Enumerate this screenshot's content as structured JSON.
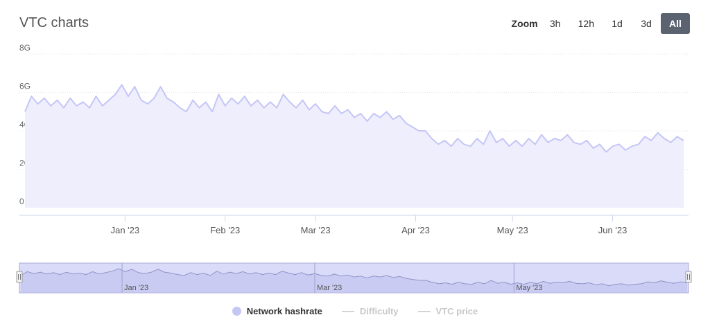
{
  "title": "VTC charts",
  "zoom": {
    "label": "Zoom",
    "buttons": [
      "3h",
      "12h",
      "1d",
      "3d",
      "All"
    ],
    "active": "All"
  },
  "legend": [
    {
      "label": "Network hashrate",
      "active": true,
      "color": "#c4c6f6"
    },
    {
      "label": "Difficulty",
      "active": false,
      "color": "#d4d4d4"
    },
    {
      "label": "VTC price",
      "active": false,
      "color": "#d4d4d4"
    }
  ],
  "colors": {
    "series_line": "#c4c6f6",
    "series_fill": "#eeeefc",
    "navigator_fill": "#cdcff5",
    "navigator_line": "#9092c8"
  },
  "chart_data": {
    "type": "area",
    "x_start": "2022-12-01",
    "x_end": "2023-06-23",
    "ylim": [
      0,
      8
    ],
    "y_unit": "G",
    "y_ticks": [
      {
        "v": 0,
        "label": "0"
      },
      {
        "v": 2,
        "label": "2G"
      },
      {
        "v": 4,
        "label": "4G"
      },
      {
        "v": 6,
        "label": "6G"
      },
      {
        "v": 8,
        "label": "8G"
      }
    ],
    "x_ticks": [
      {
        "date": "2023-01-01",
        "label": "Jan '23"
      },
      {
        "date": "2023-02-01",
        "label": "Feb '23"
      },
      {
        "date": "2023-03-01",
        "label": "Mar '23"
      },
      {
        "date": "2023-04-01",
        "label": "Apr '23"
      },
      {
        "date": "2023-05-01",
        "label": "May '23"
      },
      {
        "date": "2023-06-01",
        "label": "Jun '23"
      }
    ],
    "navigator_ticks": [
      {
        "date": "2023-01-01",
        "label": "Jan '23"
      },
      {
        "date": "2023-03-01",
        "label": "Mar '23"
      },
      {
        "date": "2023-05-01",
        "label": "May '23"
      }
    ],
    "series": [
      {
        "name": "Network hashrate",
        "points": [
          [
            "2022-12-01",
            5.0
          ],
          [
            "2022-12-03",
            5.8
          ],
          [
            "2022-12-05",
            5.4
          ],
          [
            "2022-12-07",
            5.7
          ],
          [
            "2022-12-09",
            5.3
          ],
          [
            "2022-12-11",
            5.6
          ],
          [
            "2022-12-13",
            5.2
          ],
          [
            "2022-12-15",
            5.7
          ],
          [
            "2022-12-17",
            5.3
          ],
          [
            "2022-12-19",
            5.5
          ],
          [
            "2022-12-21",
            5.2
          ],
          [
            "2022-12-23",
            5.8
          ],
          [
            "2022-12-25",
            5.3
          ],
          [
            "2022-12-27",
            5.6
          ],
          [
            "2022-12-29",
            5.9
          ],
          [
            "2022-12-31",
            6.4
          ],
          [
            "2023-01-02",
            5.8
          ],
          [
            "2023-01-04",
            6.3
          ],
          [
            "2023-01-06",
            5.6
          ],
          [
            "2023-01-08",
            5.4
          ],
          [
            "2023-01-10",
            5.7
          ],
          [
            "2023-01-12",
            6.3
          ],
          [
            "2023-01-14",
            5.7
          ],
          [
            "2023-01-16",
            5.5
          ],
          [
            "2023-01-18",
            5.2
          ],
          [
            "2023-01-20",
            5.0
          ],
          [
            "2023-01-22",
            5.6
          ],
          [
            "2023-01-24",
            5.2
          ],
          [
            "2023-01-26",
            5.5
          ],
          [
            "2023-01-28",
            5.0
          ],
          [
            "2023-01-30",
            5.9
          ],
          [
            "2023-02-01",
            5.3
          ],
          [
            "2023-02-03",
            5.7
          ],
          [
            "2023-02-05",
            5.4
          ],
          [
            "2023-02-07",
            5.8
          ],
          [
            "2023-02-09",
            5.3
          ],
          [
            "2023-02-11",
            5.6
          ],
          [
            "2023-02-13",
            5.2
          ],
          [
            "2023-02-15",
            5.5
          ],
          [
            "2023-02-17",
            5.2
          ],
          [
            "2023-02-19",
            5.9
          ],
          [
            "2023-02-21",
            5.5
          ],
          [
            "2023-02-23",
            5.2
          ],
          [
            "2023-02-25",
            5.6
          ],
          [
            "2023-02-27",
            5.1
          ],
          [
            "2023-03-01",
            5.4
          ],
          [
            "2023-03-03",
            5.0
          ],
          [
            "2023-03-05",
            4.9
          ],
          [
            "2023-03-07",
            5.3
          ],
          [
            "2023-03-09",
            4.9
          ],
          [
            "2023-03-11",
            5.1
          ],
          [
            "2023-03-13",
            4.7
          ],
          [
            "2023-03-15",
            4.9
          ],
          [
            "2023-03-17",
            4.5
          ],
          [
            "2023-03-19",
            4.9
          ],
          [
            "2023-03-21",
            4.7
          ],
          [
            "2023-03-23",
            5.0
          ],
          [
            "2023-03-25",
            4.6
          ],
          [
            "2023-03-27",
            4.8
          ],
          [
            "2023-03-29",
            4.4
          ],
          [
            "2023-03-31",
            4.2
          ],
          [
            "2023-04-02",
            4.0
          ],
          [
            "2023-04-04",
            4.0
          ],
          [
            "2023-04-06",
            3.6
          ],
          [
            "2023-04-08",
            3.3
          ],
          [
            "2023-04-10",
            3.5
          ],
          [
            "2023-04-12",
            3.2
          ],
          [
            "2023-04-14",
            3.6
          ],
          [
            "2023-04-16",
            3.3
          ],
          [
            "2023-04-18",
            3.2
          ],
          [
            "2023-04-20",
            3.6
          ],
          [
            "2023-04-22",
            3.3
          ],
          [
            "2023-04-24",
            4.0
          ],
          [
            "2023-04-26",
            3.4
          ],
          [
            "2023-04-28",
            3.6
          ],
          [
            "2023-04-30",
            3.2
          ],
          [
            "2023-05-02",
            3.5
          ],
          [
            "2023-05-04",
            3.2
          ],
          [
            "2023-05-06",
            3.6
          ],
          [
            "2023-05-08",
            3.3
          ],
          [
            "2023-05-10",
            3.8
          ],
          [
            "2023-05-12",
            3.4
          ],
          [
            "2023-05-14",
            3.6
          ],
          [
            "2023-05-16",
            3.5
          ],
          [
            "2023-05-18",
            3.8
          ],
          [
            "2023-05-20",
            3.4
          ],
          [
            "2023-05-22",
            3.3
          ],
          [
            "2023-05-24",
            3.5
          ],
          [
            "2023-05-26",
            3.1
          ],
          [
            "2023-05-28",
            3.3
          ],
          [
            "2023-05-30",
            2.9
          ],
          [
            "2023-06-01",
            3.2
          ],
          [
            "2023-06-03",
            3.3
          ],
          [
            "2023-06-05",
            3.0
          ],
          [
            "2023-06-07",
            3.2
          ],
          [
            "2023-06-09",
            3.3
          ],
          [
            "2023-06-11",
            3.7
          ],
          [
            "2023-06-13",
            3.5
          ],
          [
            "2023-06-15",
            3.9
          ],
          [
            "2023-06-17",
            3.6
          ],
          [
            "2023-06-19",
            3.4
          ],
          [
            "2023-06-21",
            3.7
          ],
          [
            "2023-06-23",
            3.5
          ]
        ]
      }
    ]
  }
}
